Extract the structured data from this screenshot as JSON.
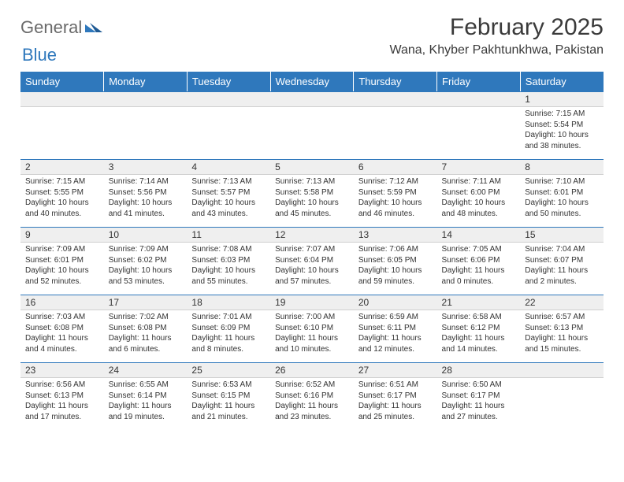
{
  "brand": {
    "part1": "General",
    "part2": "Blue"
  },
  "title": "February 2025",
  "location": "Wana, Khyber Pakhtunkhwa, Pakistan",
  "colors": {
    "header_bg": "#2f78bc",
    "header_text": "#ffffff",
    "daynum_bg": "#efefef",
    "border_top": "#2f78bc",
    "text": "#333333",
    "logo_gray": "#6a6a6a"
  },
  "weekdays": [
    "Sunday",
    "Monday",
    "Tuesday",
    "Wednesday",
    "Thursday",
    "Friday",
    "Saturday"
  ],
  "weeks": [
    [
      null,
      null,
      null,
      null,
      null,
      null,
      {
        "num": "1",
        "sunrise": "Sunrise: 7:15 AM",
        "sunset": "Sunset: 5:54 PM",
        "daylight": "Daylight: 10 hours and 38 minutes."
      }
    ],
    [
      {
        "num": "2",
        "sunrise": "Sunrise: 7:15 AM",
        "sunset": "Sunset: 5:55 PM",
        "daylight": "Daylight: 10 hours and 40 minutes."
      },
      {
        "num": "3",
        "sunrise": "Sunrise: 7:14 AM",
        "sunset": "Sunset: 5:56 PM",
        "daylight": "Daylight: 10 hours and 41 minutes."
      },
      {
        "num": "4",
        "sunrise": "Sunrise: 7:13 AM",
        "sunset": "Sunset: 5:57 PM",
        "daylight": "Daylight: 10 hours and 43 minutes."
      },
      {
        "num": "5",
        "sunrise": "Sunrise: 7:13 AM",
        "sunset": "Sunset: 5:58 PM",
        "daylight": "Daylight: 10 hours and 45 minutes."
      },
      {
        "num": "6",
        "sunrise": "Sunrise: 7:12 AM",
        "sunset": "Sunset: 5:59 PM",
        "daylight": "Daylight: 10 hours and 46 minutes."
      },
      {
        "num": "7",
        "sunrise": "Sunrise: 7:11 AM",
        "sunset": "Sunset: 6:00 PM",
        "daylight": "Daylight: 10 hours and 48 minutes."
      },
      {
        "num": "8",
        "sunrise": "Sunrise: 7:10 AM",
        "sunset": "Sunset: 6:01 PM",
        "daylight": "Daylight: 10 hours and 50 minutes."
      }
    ],
    [
      {
        "num": "9",
        "sunrise": "Sunrise: 7:09 AM",
        "sunset": "Sunset: 6:01 PM",
        "daylight": "Daylight: 10 hours and 52 minutes."
      },
      {
        "num": "10",
        "sunrise": "Sunrise: 7:09 AM",
        "sunset": "Sunset: 6:02 PM",
        "daylight": "Daylight: 10 hours and 53 minutes."
      },
      {
        "num": "11",
        "sunrise": "Sunrise: 7:08 AM",
        "sunset": "Sunset: 6:03 PM",
        "daylight": "Daylight: 10 hours and 55 minutes."
      },
      {
        "num": "12",
        "sunrise": "Sunrise: 7:07 AM",
        "sunset": "Sunset: 6:04 PM",
        "daylight": "Daylight: 10 hours and 57 minutes."
      },
      {
        "num": "13",
        "sunrise": "Sunrise: 7:06 AM",
        "sunset": "Sunset: 6:05 PM",
        "daylight": "Daylight: 10 hours and 59 minutes."
      },
      {
        "num": "14",
        "sunrise": "Sunrise: 7:05 AM",
        "sunset": "Sunset: 6:06 PM",
        "daylight": "Daylight: 11 hours and 0 minutes."
      },
      {
        "num": "15",
        "sunrise": "Sunrise: 7:04 AM",
        "sunset": "Sunset: 6:07 PM",
        "daylight": "Daylight: 11 hours and 2 minutes."
      }
    ],
    [
      {
        "num": "16",
        "sunrise": "Sunrise: 7:03 AM",
        "sunset": "Sunset: 6:08 PM",
        "daylight": "Daylight: 11 hours and 4 minutes."
      },
      {
        "num": "17",
        "sunrise": "Sunrise: 7:02 AM",
        "sunset": "Sunset: 6:08 PM",
        "daylight": "Daylight: 11 hours and 6 minutes."
      },
      {
        "num": "18",
        "sunrise": "Sunrise: 7:01 AM",
        "sunset": "Sunset: 6:09 PM",
        "daylight": "Daylight: 11 hours and 8 minutes."
      },
      {
        "num": "19",
        "sunrise": "Sunrise: 7:00 AM",
        "sunset": "Sunset: 6:10 PM",
        "daylight": "Daylight: 11 hours and 10 minutes."
      },
      {
        "num": "20",
        "sunrise": "Sunrise: 6:59 AM",
        "sunset": "Sunset: 6:11 PM",
        "daylight": "Daylight: 11 hours and 12 minutes."
      },
      {
        "num": "21",
        "sunrise": "Sunrise: 6:58 AM",
        "sunset": "Sunset: 6:12 PM",
        "daylight": "Daylight: 11 hours and 14 minutes."
      },
      {
        "num": "22",
        "sunrise": "Sunrise: 6:57 AM",
        "sunset": "Sunset: 6:13 PM",
        "daylight": "Daylight: 11 hours and 15 minutes."
      }
    ],
    [
      {
        "num": "23",
        "sunrise": "Sunrise: 6:56 AM",
        "sunset": "Sunset: 6:13 PM",
        "daylight": "Daylight: 11 hours and 17 minutes."
      },
      {
        "num": "24",
        "sunrise": "Sunrise: 6:55 AM",
        "sunset": "Sunset: 6:14 PM",
        "daylight": "Daylight: 11 hours and 19 minutes."
      },
      {
        "num": "25",
        "sunrise": "Sunrise: 6:53 AM",
        "sunset": "Sunset: 6:15 PM",
        "daylight": "Daylight: 11 hours and 21 minutes."
      },
      {
        "num": "26",
        "sunrise": "Sunrise: 6:52 AM",
        "sunset": "Sunset: 6:16 PM",
        "daylight": "Daylight: 11 hours and 23 minutes."
      },
      {
        "num": "27",
        "sunrise": "Sunrise: 6:51 AM",
        "sunset": "Sunset: 6:17 PM",
        "daylight": "Daylight: 11 hours and 25 minutes."
      },
      {
        "num": "28",
        "sunrise": "Sunrise: 6:50 AM",
        "sunset": "Sunset: 6:17 PM",
        "daylight": "Daylight: 11 hours and 27 minutes."
      },
      null
    ]
  ]
}
